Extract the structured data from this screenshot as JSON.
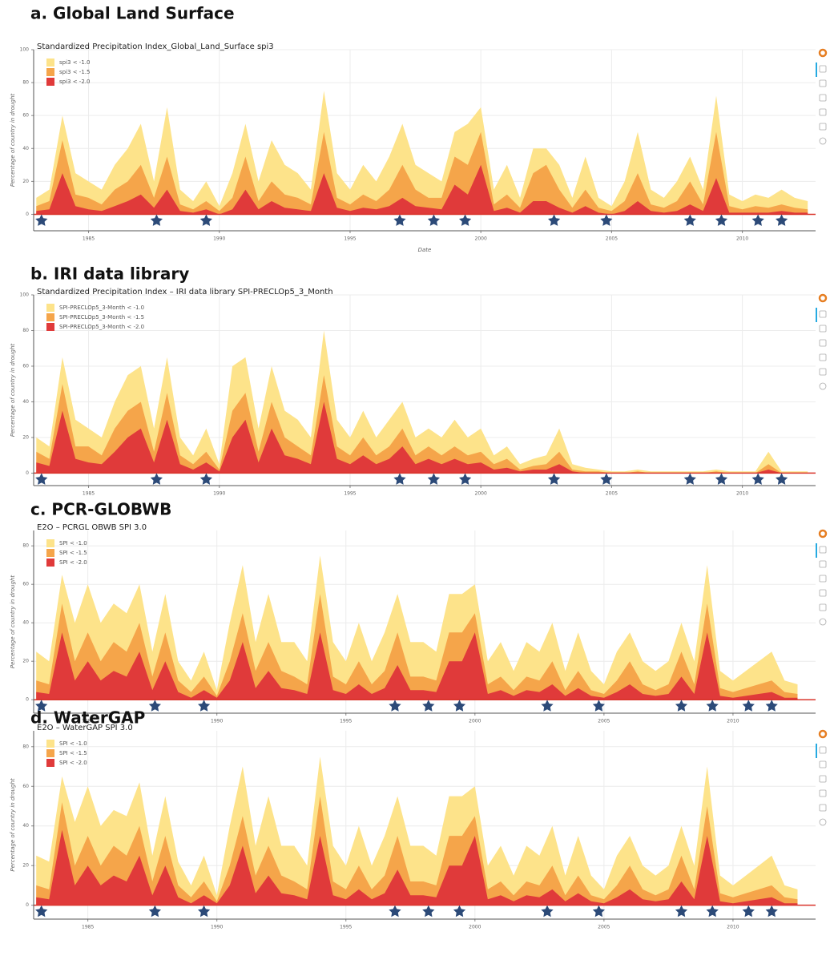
{
  "chart_data": [
    {
      "type": "area",
      "title": "a. Global Land Surface",
      "subtitle": "Standardized Precipitation Index_Global_Land_Surface spi3",
      "ylabel": "Percentage of country in drought",
      "xlabel": "Date",
      "x": [
        1983.0,
        1983.5,
        1984.0,
        1984.5,
        1985.0,
        1985.5,
        1986.0,
        1986.5,
        1987.0,
        1987.5,
        1988.0,
        1988.5,
        1989.0,
        1989.5,
        1990.0,
        1990.5,
        1991.0,
        1991.5,
        1992.0,
        1992.5,
        1993.0,
        1993.5,
        1994.0,
        1994.5,
        1995.0,
        1995.5,
        1996.0,
        1996.5,
        1997.0,
        1997.5,
        1998.0,
        1998.5,
        1999.0,
        1999.5,
        2000.0,
        2000.5,
        2001.0,
        2001.5,
        2002.0,
        2002.5,
        2003.0,
        2003.5,
        2004.0,
        2004.5,
        2005.0,
        2005.5,
        2006.0,
        2006.5,
        2007.0,
        2007.5,
        2008.0,
        2008.5,
        2009.0,
        2009.5,
        2010.0,
        2010.5,
        2011.0,
        2011.5,
        2012.0,
        2012.5
      ],
      "series": [
        {
          "name": "spi3 < -1.0",
          "color": "#fde38a",
          "values": [
            10,
            15,
            60,
            25,
            20,
            15,
            30,
            40,
            55,
            20,
            65,
            15,
            8,
            20,
            5,
            25,
            55,
            20,
            45,
            30,
            25,
            15,
            75,
            25,
            15,
            30,
            20,
            35,
            55,
            30,
            25,
            20,
            50,
            55,
            65,
            15,
            30,
            10,
            40,
            40,
            30,
            10,
            35,
            10,
            5,
            20,
            50,
            15,
            10,
            20,
            35,
            15,
            72,
            12,
            8,
            12,
            10,
            15,
            10,
            8
          ]
        },
        {
          "name": "spi3 < -1.5",
          "color": "#f5a54a",
          "values": [
            5,
            8,
            45,
            12,
            10,
            6,
            15,
            20,
            30,
            10,
            35,
            6,
            3,
            8,
            2,
            10,
            35,
            8,
            20,
            12,
            10,
            6,
            50,
            10,
            6,
            12,
            8,
            15,
            30,
            15,
            10,
            10,
            35,
            30,
            50,
            6,
            12,
            4,
            25,
            30,
            15,
            4,
            15,
            4,
            2,
            8,
            25,
            6,
            4,
            8,
            20,
            6,
            50,
            5,
            3,
            5,
            4,
            6,
            4,
            3
          ]
        },
        {
          "name": "spi3 < -2.0",
          "color": "#e03a3a",
          "values": [
            2,
            3,
            25,
            5,
            3,
            2,
            5,
            8,
            12,
            4,
            15,
            2,
            1,
            3,
            0,
            3,
            15,
            3,
            8,
            4,
            3,
            2,
            25,
            4,
            2,
            4,
            3,
            5,
            10,
            5,
            4,
            3,
            18,
            12,
            30,
            2,
            4,
            1,
            8,
            8,
            4,
            1,
            5,
            1,
            0,
            2,
            8,
            2,
            1,
            2,
            6,
            2,
            22,
            1,
            1,
            1,
            1,
            2,
            1,
            1
          ]
        }
      ],
      "events": [
        1983.2,
        1987.6,
        1989.5,
        1996.9,
        1998.2,
        1999.4,
        2002.8,
        2004.8,
        2008.0,
        2009.2,
        2010.6,
        2011.5
      ],
      "xlim": [
        1982.9,
        2012.8
      ],
      "xticks": [
        1985,
        1990,
        1995,
        2000,
        2005,
        2010
      ],
      "ylim": [
        -10,
        100
      ],
      "yticks": [
        0,
        20,
        40,
        60,
        80,
        100
      ],
      "grid": true
    },
    {
      "type": "area",
      "title": "b. IRI data library",
      "subtitle": "Standardized Precipitation Index – IRI data library SPI-PRECLOp5_3_Month",
      "ylabel": "Percentage of country in drought",
      "x": [
        1983.0,
        1983.5,
        1984.0,
        1984.5,
        1985.0,
        1985.5,
        1986.0,
        1986.5,
        1987.0,
        1987.5,
        1988.0,
        1988.5,
        1989.0,
        1989.5,
        1990.0,
        1990.5,
        1991.0,
        1991.5,
        1992.0,
        1992.5,
        1993.0,
        1993.5,
        1994.0,
        1994.5,
        1995.0,
        1995.5,
        1996.0,
        1996.5,
        1997.0,
        1997.5,
        1998.0,
        1998.5,
        1999.0,
        1999.5,
        2000.0,
        2000.5,
        2001.0,
        2001.5,
        2002.0,
        2002.5,
        2003.0,
        2003.5,
        2004.0,
        2004.5,
        2005.0,
        2005.5,
        2006.0,
        2006.5,
        2007.0,
        2007.5,
        2008.0,
        2008.5,
        2009.0,
        2009.5,
        2010.0,
        2010.5,
        2011.0,
        2011.5,
        2012.0,
        2012.5
      ],
      "series": [
        {
          "name": "SPI-PRECLOp5_3-Month < -1.0",
          "color": "#fde38a",
          "values": [
            20,
            15,
            65,
            30,
            25,
            20,
            40,
            55,
            60,
            25,
            65,
            20,
            10,
            25,
            5,
            60,
            65,
            25,
            60,
            35,
            30,
            20,
            80,
            30,
            20,
            35,
            20,
            30,
            40,
            20,
            25,
            20,
            30,
            20,
            25,
            10,
            15,
            5,
            8,
            10,
            25,
            5,
            3,
            2,
            1,
            1,
            2,
            1,
            1,
            1,
            1,
            1,
            2,
            1,
            1,
            1,
            12,
            1,
            1,
            1
          ]
        },
        {
          "name": "SPI-PRECLOp5_3-Month < -1.5",
          "color": "#f5a54a",
          "values": [
            12,
            8,
            50,
            15,
            15,
            10,
            25,
            35,
            40,
            12,
            45,
            10,
            5,
            12,
            2,
            35,
            45,
            12,
            40,
            20,
            15,
            10,
            55,
            15,
            10,
            20,
            10,
            15,
            25,
            10,
            15,
            10,
            15,
            10,
            12,
            5,
            8,
            2,
            4,
            5,
            12,
            2,
            1,
            1,
            0,
            0,
            1,
            0,
            0,
            0,
            0,
            0,
            1,
            0,
            0,
            0,
            5,
            0,
            0,
            0
          ]
        },
        {
          "name": "SPI-PRECLOp5_3-Month < -2.0",
          "color": "#e03a3a",
          "values": [
            6,
            4,
            35,
            8,
            6,
            5,
            12,
            20,
            25,
            6,
            30,
            5,
            2,
            6,
            1,
            20,
            30,
            6,
            25,
            10,
            8,
            5,
            40,
            8,
            5,
            10,
            5,
            8,
            15,
            5,
            8,
            5,
            8,
            5,
            6,
            2,
            3,
            1,
            2,
            2,
            5,
            1,
            0,
            0,
            0,
            0,
            0,
            0,
            0,
            0,
            0,
            0,
            0,
            0,
            0,
            0,
            2,
            0,
            0,
            0
          ]
        }
      ],
      "events": [
        1983.2,
        1987.6,
        1989.5,
        1996.9,
        1998.2,
        1999.4,
        2002.8,
        2004.8,
        2008.0,
        2009.2,
        2010.6,
        2011.5
      ],
      "xlim": [
        1982.9,
        2012.8
      ],
      "xticks": [
        1985,
        1990,
        1995,
        2000,
        2005,
        2010
      ],
      "ylim": [
        -7,
        100
      ],
      "yticks": [
        0,
        20,
        40,
        60,
        80,
        100
      ],
      "grid": true
    },
    {
      "type": "area",
      "title": "c. PCR-GLOBWB",
      "subtitle": "E2O – PCRGL OBWB SPI 3.0",
      "ylabel": "Percentage of country in drought",
      "x": [
        1983.0,
        1983.5,
        1984.0,
        1984.5,
        1985.0,
        1985.5,
        1986.0,
        1986.5,
        1987.0,
        1987.5,
        1988.0,
        1988.5,
        1989.0,
        1989.5,
        1990.0,
        1990.5,
        1991.0,
        1991.5,
        1992.0,
        1992.5,
        1993.0,
        1993.5,
        1994.0,
        1994.5,
        1995.0,
        1995.5,
        1996.0,
        1996.5,
        1997.0,
        1997.5,
        1998.0,
        1998.5,
        1999.0,
        1999.5,
        2000.0,
        2000.5,
        2001.0,
        2001.5,
        2002.0,
        2002.5,
        2003.0,
        2003.5,
        2004.0,
        2004.5,
        2005.0,
        2005.5,
        2006.0,
        2006.5,
        2007.0,
        2007.5,
        2008.0,
        2008.5,
        2009.0,
        2009.5,
        2010.0,
        2010.5,
        2011.0,
        2011.5,
        2012.0,
        2012.5
      ],
      "series": [
        {
          "name": "SPI < -1.0",
          "color": "#fde38a",
          "values": [
            25,
            20,
            65,
            40,
            60,
            40,
            50,
            45,
            60,
            25,
            55,
            20,
            10,
            25,
            5,
            40,
            70,
            30,
            55,
            30,
            30,
            20,
            75,
            30,
            20,
            40,
            20,
            35,
            55,
            30,
            30,
            25,
            55,
            55,
            60,
            20,
            30,
            15,
            30,
            25,
            40,
            15,
            35,
            15,
            8,
            25,
            35,
            20,
            15,
            20,
            40,
            20,
            70,
            15,
            10,
            15,
            20,
            25,
            10,
            8
          ]
        },
        {
          "name": "SPI < -1.5",
          "color": "#f5a54a",
          "values": [
            10,
            8,
            50,
            20,
            35,
            20,
            30,
            25,
            40,
            12,
            35,
            10,
            4,
            12,
            2,
            20,
            45,
            15,
            30,
            15,
            12,
            8,
            55,
            12,
            8,
            20,
            8,
            15,
            35,
            12,
            12,
            10,
            35,
            35,
            45,
            8,
            12,
            5,
            12,
            10,
            20,
            5,
            15,
            5,
            3,
            10,
            20,
            8,
            5,
            8,
            25,
            8,
            50,
            6,
            4,
            6,
            8,
            10,
            4,
            3
          ]
        },
        {
          "name": "SPI < -2.0",
          "color": "#e03a3a",
          "values": [
            4,
            3,
            35,
            10,
            20,
            10,
            15,
            12,
            25,
            5,
            20,
            4,
            1,
            5,
            1,
            10,
            30,
            6,
            15,
            6,
            5,
            3,
            35,
            5,
            3,
            8,
            3,
            6,
            18,
            5,
            5,
            4,
            20,
            20,
            35,
            3,
            5,
            2,
            5,
            4,
            8,
            2,
            6,
            2,
            1,
            4,
            8,
            3,
            2,
            3,
            12,
            3,
            35,
            2,
            1,
            2,
            3,
            4,
            1,
            1
          ]
        }
      ],
      "events": [
        1983.2,
        1987.6,
        1989.5,
        1996.9,
        1998.2,
        1999.4,
        2002.8,
        2004.8,
        2008.0,
        2009.2,
        2010.6,
        2011.5
      ],
      "xlim": [
        1982.9,
        2013.2
      ],
      "xticks": [
        1985,
        1990,
        1995,
        2000,
        2005,
        2010
      ],
      "ylim": [
        -7,
        88
      ],
      "yticks": [
        0,
        20,
        40,
        60,
        80
      ],
      "grid": true
    },
    {
      "type": "area",
      "title": "d. WaterGAP",
      "subtitle": "E2O – WaterGAP SPI 3.0",
      "ylabel": "Percentage of country in drought",
      "x": [
        1983.0,
        1983.5,
        1984.0,
        1984.5,
        1985.0,
        1985.5,
        1986.0,
        1986.5,
        1987.0,
        1987.5,
        1988.0,
        1988.5,
        1989.0,
        1989.5,
        1990.0,
        1990.5,
        1991.0,
        1991.5,
        1992.0,
        1992.5,
        1993.0,
        1993.5,
        1994.0,
        1994.5,
        1995.0,
        1995.5,
        1996.0,
        1996.5,
        1997.0,
        1997.5,
        1998.0,
        1998.5,
        1999.0,
        1999.5,
        2000.0,
        2000.5,
        2001.0,
        2001.5,
        2002.0,
        2002.5,
        2003.0,
        2003.5,
        2004.0,
        2004.5,
        2005.0,
        2005.5,
        2006.0,
        2006.5,
        2007.0,
        2007.5,
        2008.0,
        2008.5,
        2009.0,
        2009.5,
        2010.0,
        2010.5,
        2011.0,
        2011.5,
        2012.0,
        2012.5
      ],
      "series": [
        {
          "name": "SPI < -1.0",
          "color": "#fde38a",
          "values": [
            25,
            22,
            65,
            42,
            60,
            40,
            48,
            45,
            62,
            25,
            55,
            22,
            10,
            25,
            5,
            40,
            70,
            30,
            55,
            30,
            30,
            20,
            75,
            30,
            20,
            40,
            20,
            35,
            55,
            30,
            30,
            25,
            55,
            55,
            60,
            20,
            30,
            15,
            30,
            25,
            40,
            15,
            35,
            15,
            8,
            25,
            35,
            20,
            15,
            20,
            40,
            20,
            70,
            15,
            10,
            15,
            20,
            25,
            10,
            8
          ]
        },
        {
          "name": "SPI < -1.5",
          "color": "#f5a54a",
          "values": [
            10,
            8,
            52,
            20,
            35,
            20,
            30,
            25,
            40,
            12,
            35,
            10,
            4,
            12,
            2,
            20,
            45,
            15,
            30,
            15,
            12,
            8,
            55,
            12,
            8,
            20,
            8,
            15,
            35,
            12,
            12,
            10,
            35,
            35,
            45,
            8,
            12,
            5,
            12,
            10,
            20,
            5,
            15,
            5,
            3,
            10,
            20,
            8,
            5,
            8,
            25,
            8,
            50,
            6,
            4,
            6,
            8,
            10,
            4,
            3
          ]
        },
        {
          "name": "SPI < -2.0",
          "color": "#e03a3a",
          "values": [
            4,
            3,
            38,
            10,
            20,
            10,
            15,
            12,
            25,
            5,
            20,
            4,
            1,
            5,
            1,
            10,
            30,
            6,
            15,
            6,
            5,
            3,
            35,
            5,
            3,
            8,
            3,
            6,
            18,
            5,
            5,
            4,
            20,
            20,
            35,
            3,
            5,
            2,
            5,
            4,
            8,
            2,
            6,
            2,
            1,
            4,
            8,
            3,
            2,
            3,
            12,
            3,
            35,
            2,
            1,
            2,
            3,
            4,
            1,
            1
          ]
        }
      ],
      "events": [
        1983.2,
        1987.6,
        1989.5,
        1996.9,
        1998.2,
        1999.4,
        2002.8,
        2004.8,
        2008.0,
        2009.2,
        2010.6,
        2011.5
      ],
      "xlim": [
        1982.9,
        2013.2
      ],
      "xticks": [
        1985,
        1990,
        1995,
        2000,
        2005,
        2010
      ],
      "ylim": [
        -7,
        88
      ],
      "yticks": [
        0,
        20,
        40,
        60,
        80
      ],
      "grid": true
    }
  ]
}
